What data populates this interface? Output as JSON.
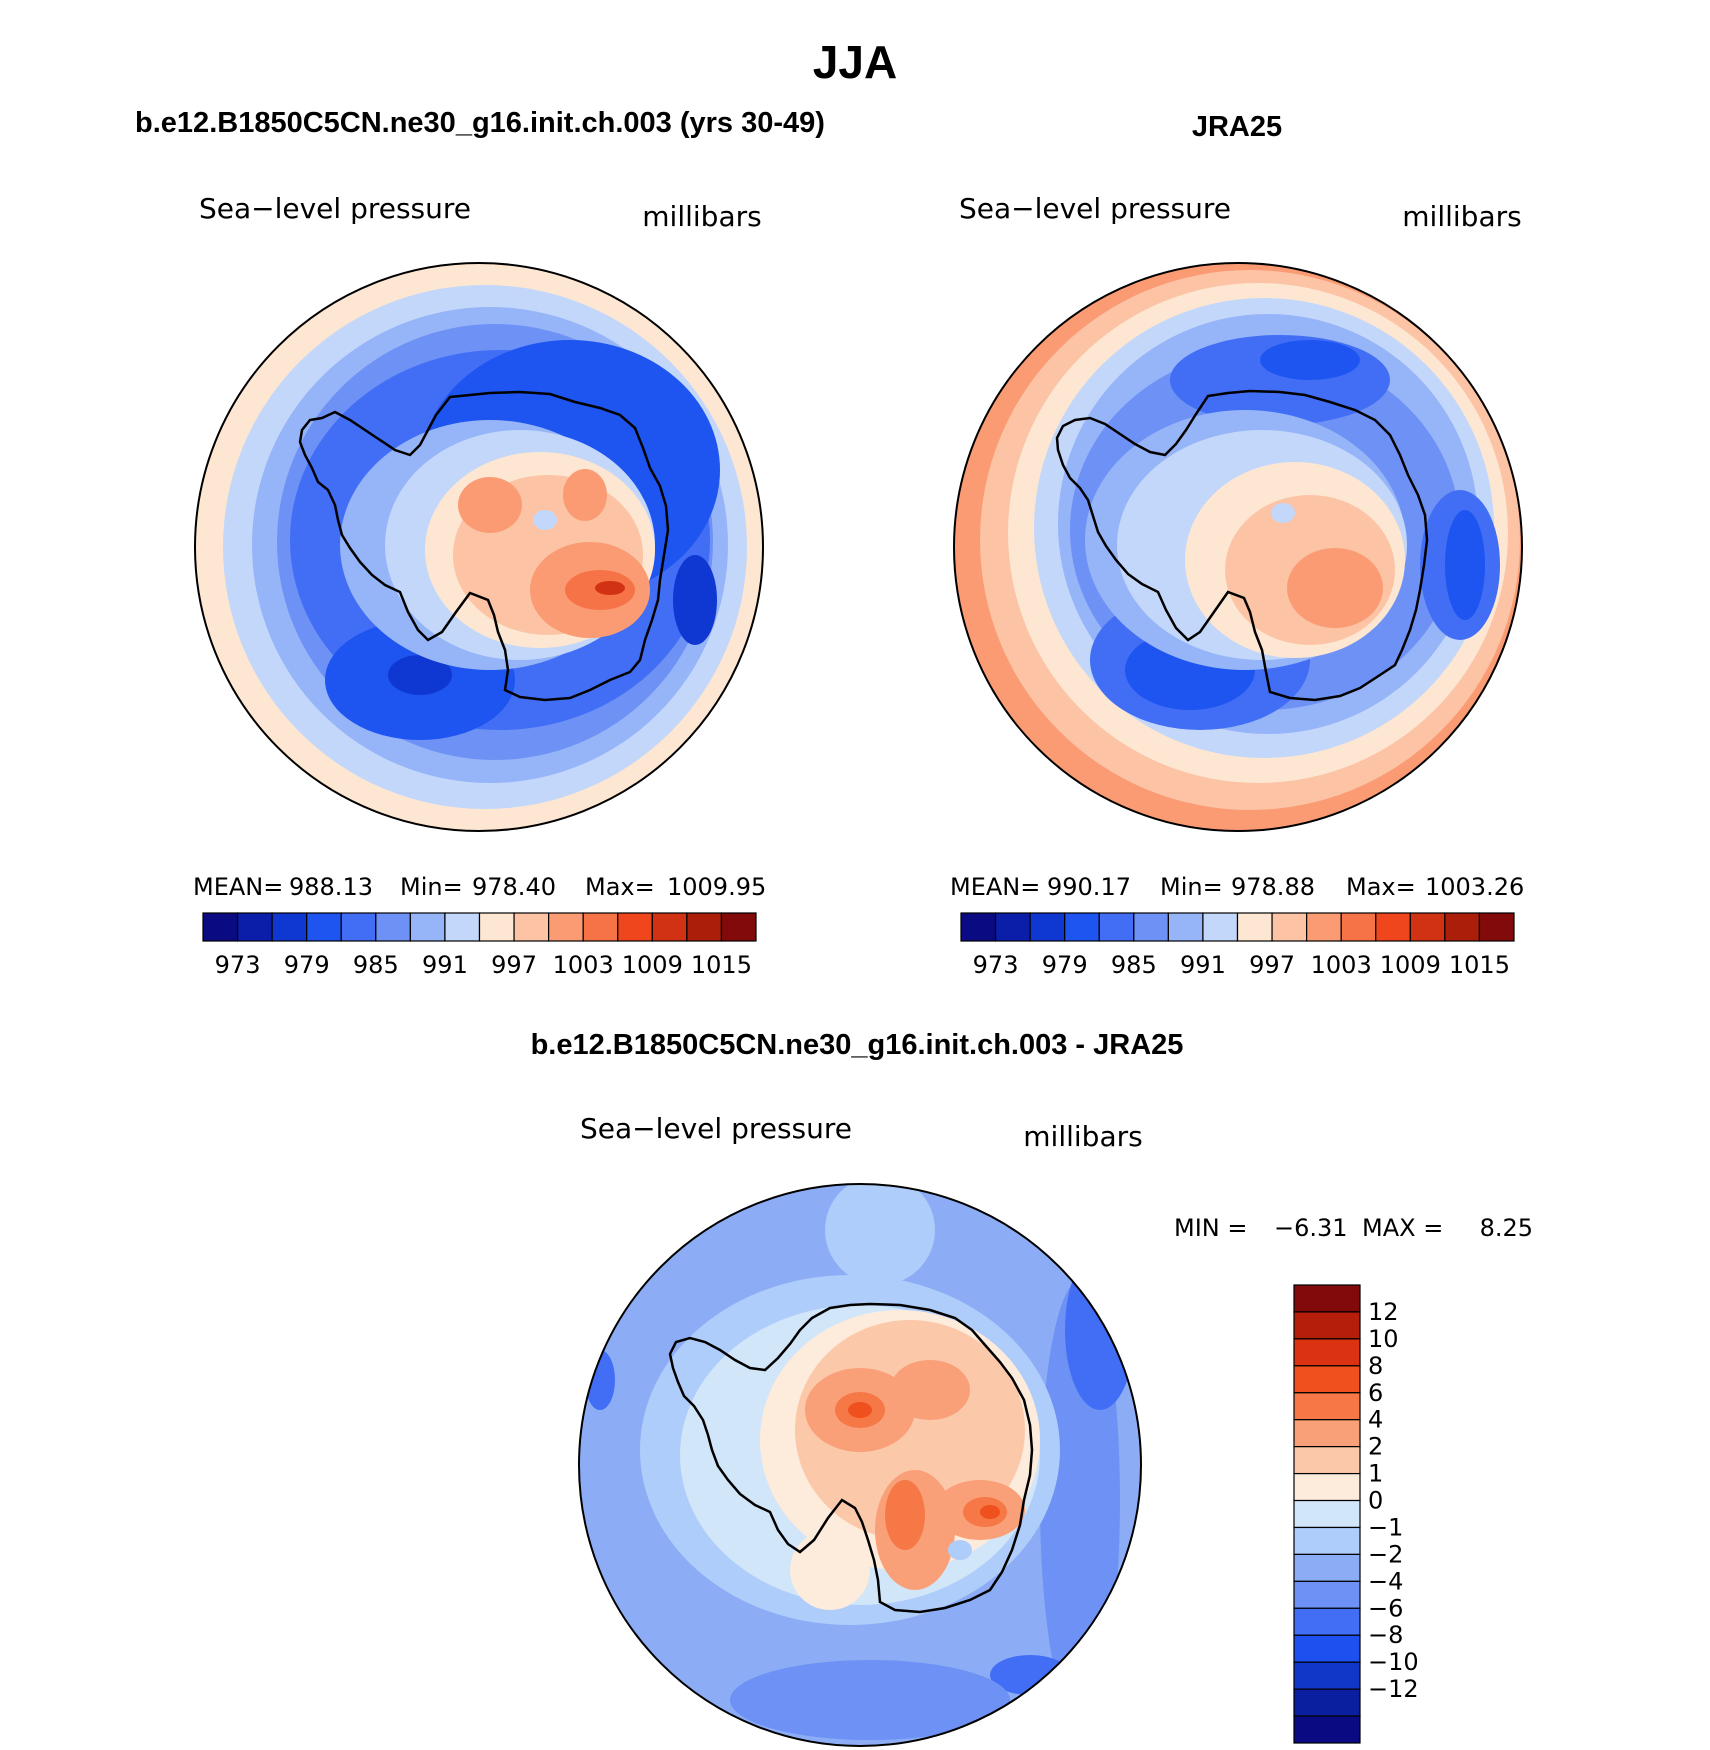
{
  "figure_title": "JJA",
  "chart_data": [
    {
      "type": "contour-map",
      "projection": "south-polar-stereographic",
      "panel_title": "b.e12.B1850C5CN.ne30_g16.init.ch.003 (yrs 30-49)",
      "left_label": "Sea−level pressure",
      "right_label": "millibars",
      "stats": {
        "mean_label": "MEAN=",
        "mean": "988.13",
        "min_label": "Min=",
        "min": "978.40",
        "max_label": "Max=",
        "max": "1009.95"
      },
      "colorbar": {
        "orientation": "horizontal",
        "colors": [
          "#0a0a82",
          "#0a1eaa",
          "#0f37d2",
          "#1e55f0",
          "#416ef5",
          "#6e91f5",
          "#96b4f8",
          "#c3d7fa",
          "#fde6d2",
          "#fcc3a5",
          "#fa9b73",
          "#f57346",
          "#f0461e",
          "#d23214",
          "#aa1e0a",
          "#820a0a"
        ],
        "tick_labels": [
          "973",
          "979",
          "985",
          "991",
          "997",
          "1003",
          "1009",
          "1015"
        ]
      },
      "field_levels_mb": [
        990,
        986,
        981,
        978,
        982,
        990,
        995,
        1000,
        1004,
        1008
      ]
    },
    {
      "type": "contour-map",
      "projection": "south-polar-stereographic",
      "panel_title": "JRA25",
      "left_label": "Sea−level pressure",
      "right_label": "millibars",
      "stats": {
        "mean_label": "MEAN=",
        "mean": "990.17",
        "min_label": "Min=",
        "min": "978.88",
        "max_label": "Max=",
        "max": "1003.26"
      },
      "colorbar": {
        "orientation": "horizontal",
        "colors": [
          "#0a0a82",
          "#0a1eaa",
          "#0f37d2",
          "#1e55f0",
          "#416ef5",
          "#6e91f5",
          "#96b4f8",
          "#c3d7fa",
          "#fde6d2",
          "#fcc3a5",
          "#fa9b73",
          "#f57346",
          "#f0461e",
          "#d23214",
          "#aa1e0a",
          "#820a0a"
        ],
        "tick_labels": [
          "973",
          "979",
          "985",
          "991",
          "997",
          "1003",
          "1009",
          "1015"
        ]
      },
      "field_levels_mb": [
        1004,
        998,
        992,
        986,
        982,
        990,
        994,
        997,
        1000,
        1002
      ]
    },
    {
      "type": "contour-map",
      "projection": "south-polar-stereographic",
      "panel_title": "b.e12.B1850C5CN.ne30_g16.init.ch.003 - JRA25",
      "left_label": "Sea−level pressure",
      "right_label": "millibars",
      "stats": {
        "min_label": "MIN =",
        "min": "−6.31",
        "max_label": "MAX =",
        "max": "8.25"
      },
      "colorbar": {
        "orientation": "vertical",
        "colors_top_to_bottom": [
          "#820a0a",
          "#b41e0a",
          "#dc3214",
          "#f0501e",
          "#f57846",
          "#faa078",
          "#fcc8aa",
          "#fdebdc",
          "#d2e6fa",
          "#afcdfa",
          "#8cadf5",
          "#6e91f5",
          "#416ef5",
          "#1e50f0",
          "#0f37c8",
          "#0a1ea0",
          "#0a0a82"
        ],
        "tick_labels": [
          "12",
          "10",
          "8",
          "6",
          "4",
          "2",
          "1",
          "0",
          "−1",
          "−2",
          "−4",
          "−6",
          "−8",
          "−10",
          "−12"
        ]
      },
      "field_levels_mb": [
        -4,
        -3.5,
        -2.5,
        -1.5,
        -0.5,
        0.5,
        2,
        3,
        5,
        6
      ]
    }
  ]
}
